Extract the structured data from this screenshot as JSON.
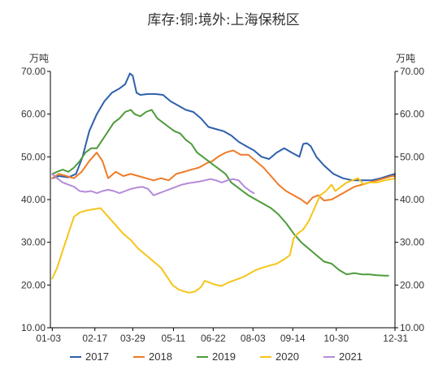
{
  "chart_data": {
    "type": "line",
    "title": "库存:铜:境外:上海保税区",
    "unit_left": "万吨",
    "unit_right": "万吨",
    "ylim": [
      10,
      70
    ],
    "yticks": [
      "10.00",
      "20.00",
      "30.00",
      "40.00",
      "50.00",
      "60.00",
      "70.00"
    ],
    "xlim": [
      1,
      365
    ],
    "xticks": [
      {
        "label": "01-03",
        "day": 3
      },
      {
        "label": "02-17",
        "day": 48
      },
      {
        "label": "03-29",
        "day": 88
      },
      {
        "label": "05-11",
        "day": 131
      },
      {
        "label": "06-22",
        "day": 173
      },
      {
        "label": "08-03",
        "day": 215
      },
      {
        "label": "09-14",
        "day": 257
      },
      {
        "label": "10-30",
        "day": 303
      },
      {
        "label": "12-31",
        "day": 365
      }
    ],
    "series": [
      {
        "name": "2017",
        "color": "#2e5fac",
        "points": [
          [
            3,
            45
          ],
          [
            10,
            45.5
          ],
          [
            20,
            45.2
          ],
          [
            28,
            46
          ],
          [
            35,
            50
          ],
          [
            42,
            56
          ],
          [
            50,
            60
          ],
          [
            58,
            63
          ],
          [
            66,
            65
          ],
          [
            74,
            66
          ],
          [
            80,
            67
          ],
          [
            85,
            69.5
          ],
          [
            88,
            69
          ],
          [
            92,
            65
          ],
          [
            96,
            64.5
          ],
          [
            104,
            64.7
          ],
          [
            112,
            64.7
          ],
          [
            120,
            64.5
          ],
          [
            128,
            63
          ],
          [
            136,
            62
          ],
          [
            144,
            61
          ],
          [
            152,
            60.5
          ],
          [
            160,
            59
          ],
          [
            168,
            57
          ],
          [
            176,
            56.5
          ],
          [
            184,
            56
          ],
          [
            192,
            55
          ],
          [
            200,
            53.5
          ],
          [
            208,
            52.5
          ],
          [
            216,
            51.5
          ],
          [
            224,
            50
          ],
          [
            232,
            49.5
          ],
          [
            240,
            51
          ],
          [
            248,
            52
          ],
          [
            256,
            51
          ],
          [
            264,
            50
          ],
          [
            268,
            53
          ],
          [
            272,
            53.2
          ],
          [
            276,
            52.5
          ],
          [
            282,
            50
          ],
          [
            290,
            48
          ],
          [
            300,
            46
          ],
          [
            310,
            45
          ],
          [
            320,
            44.5
          ],
          [
            330,
            44.5
          ],
          [
            340,
            44.5
          ],
          [
            350,
            45
          ],
          [
            360,
            45.7
          ],
          [
            365,
            46
          ]
        ]
      },
      {
        "name": "2018",
        "color": "#ee7b27",
        "points": [
          [
            3,
            45
          ],
          [
            10,
            46
          ],
          [
            18,
            45.5
          ],
          [
            26,
            45
          ],
          [
            34,
            46.5
          ],
          [
            42,
            49
          ],
          [
            50,
            51
          ],
          [
            56,
            49
          ],
          [
            62,
            45
          ],
          [
            70,
            46.5
          ],
          [
            78,
            45.5
          ],
          [
            86,
            46
          ],
          [
            94,
            45.5
          ],
          [
            102,
            45
          ],
          [
            110,
            44.5
          ],
          [
            118,
            45
          ],
          [
            126,
            44.5
          ],
          [
            134,
            46
          ],
          [
            142,
            46.5
          ],
          [
            150,
            47
          ],
          [
            158,
            47.5
          ],
          [
            166,
            48.5
          ],
          [
            172,
            49
          ],
          [
            178,
            50
          ],
          [
            186,
            51
          ],
          [
            194,
            51.5
          ],
          [
            202,
            50.5
          ],
          [
            210,
            50.5
          ],
          [
            218,
            49
          ],
          [
            226,
            47.5
          ],
          [
            234,
            45.5
          ],
          [
            242,
            43.5
          ],
          [
            250,
            42
          ],
          [
            258,
            41
          ],
          [
            266,
            40
          ],
          [
            272,
            39
          ],
          [
            278,
            40.5
          ],
          [
            284,
            41
          ],
          [
            290,
            39.8
          ],
          [
            298,
            40
          ],
          [
            306,
            41
          ],
          [
            314,
            42
          ],
          [
            322,
            43
          ],
          [
            330,
            43.5
          ],
          [
            338,
            44
          ],
          [
            346,
            44.5
          ],
          [
            354,
            45
          ],
          [
            362,
            45.5
          ],
          [
            365,
            45.5
          ]
        ]
      },
      {
        "name": "2019",
        "color": "#4e9b3b",
        "points": [
          [
            3,
            46
          ],
          [
            8,
            46.5
          ],
          [
            14,
            47
          ],
          [
            20,
            46.5
          ],
          [
            26,
            47.5
          ],
          [
            32,
            49
          ],
          [
            38,
            51
          ],
          [
            44,
            52
          ],
          [
            50,
            52
          ],
          [
            56,
            54
          ],
          [
            62,
            56
          ],
          [
            68,
            58
          ],
          [
            74,
            59
          ],
          [
            80,
            60.5
          ],
          [
            86,
            61
          ],
          [
            90,
            60
          ],
          [
            96,
            59.5
          ],
          [
            102,
            60.5
          ],
          [
            108,
            61
          ],
          [
            114,
            59
          ],
          [
            120,
            58
          ],
          [
            126,
            57
          ],
          [
            132,
            56
          ],
          [
            138,
            55.5
          ],
          [
            144,
            54
          ],
          [
            150,
            53
          ],
          [
            156,
            51
          ],
          [
            162,
            50
          ],
          [
            168,
            49
          ],
          [
            174,
            48
          ],
          [
            180,
            47
          ],
          [
            186,
            46
          ],
          [
            192,
            44
          ],
          [
            198,
            43
          ],
          [
            204,
            42
          ],
          [
            210,
            41
          ],
          [
            218,
            40
          ],
          [
            226,
            39
          ],
          [
            234,
            38
          ],
          [
            242,
            36.5
          ],
          [
            250,
            34.5
          ],
          [
            258,
            32
          ],
          [
            266,
            30
          ],
          [
            274,
            28.5
          ],
          [
            282,
            27
          ],
          [
            290,
            25.5
          ],
          [
            298,
            25
          ],
          [
            306,
            23.5
          ],
          [
            314,
            22.5
          ],
          [
            322,
            22.8
          ],
          [
            330,
            22.5
          ],
          [
            338,
            22.5
          ],
          [
            346,
            22.3
          ],
          [
            354,
            22.2
          ],
          [
            358,
            22.2
          ]
        ]
      },
      {
        "name": "2020",
        "color": "#f5c518",
        "points": [
          [
            3,
            21.5
          ],
          [
            8,
            24
          ],
          [
            14,
            28
          ],
          [
            20,
            32
          ],
          [
            26,
            36
          ],
          [
            32,
            37
          ],
          [
            40,
            37.5
          ],
          [
            48,
            37.8
          ],
          [
            54,
            38
          ],
          [
            58,
            37
          ],
          [
            64,
            35.5
          ],
          [
            70,
            34
          ],
          [
            78,
            32
          ],
          [
            86,
            30.5
          ],
          [
            94,
            28.5
          ],
          [
            102,
            27
          ],
          [
            110,
            25.5
          ],
          [
            118,
            24
          ],
          [
            124,
            22
          ],
          [
            130,
            20
          ],
          [
            136,
            19
          ],
          [
            142,
            18.5
          ],
          [
            148,
            18.2
          ],
          [
            154,
            18.5
          ],
          [
            160,
            19.5
          ],
          [
            164,
            21
          ],
          [
            170,
            20.5
          ],
          [
            176,
            20
          ],
          [
            182,
            19.8
          ],
          [
            188,
            20.5
          ],
          [
            194,
            21
          ],
          [
            200,
            21.5
          ],
          [
            206,
            22
          ],
          [
            212,
            22.8
          ],
          [
            218,
            23.5
          ],
          [
            224,
            24
          ],
          [
            232,
            24.5
          ],
          [
            240,
            25
          ],
          [
            248,
            26
          ],
          [
            254,
            27
          ],
          [
            258,
            31
          ],
          [
            262,
            32
          ],
          [
            268,
            33
          ],
          [
            274,
            35
          ],
          [
            280,
            38
          ],
          [
            286,
            41
          ],
          [
            292,
            42
          ],
          [
            298,
            43.5
          ],
          [
            302,
            42
          ],
          [
            308,
            43
          ],
          [
            314,
            44
          ],
          [
            320,
            44.5
          ],
          [
            326,
            45
          ],
          [
            332,
            43.5
          ],
          [
            338,
            44
          ],
          [
            346,
            44
          ],
          [
            354,
            44.5
          ],
          [
            362,
            44.8
          ],
          [
            365,
            45
          ]
        ]
      },
      {
        "name": "2021",
        "color": "#b48bd9",
        "points": [
          [
            3,
            46
          ],
          [
            8,
            45
          ],
          [
            14,
            44
          ],
          [
            20,
            43.5
          ],
          [
            26,
            43
          ],
          [
            32,
            42
          ],
          [
            38,
            41.8
          ],
          [
            44,
            42
          ],
          [
            50,
            41.5
          ],
          [
            56,
            42
          ],
          [
            62,
            42.3
          ],
          [
            68,
            42
          ],
          [
            74,
            41.5
          ],
          [
            80,
            42
          ],
          [
            86,
            42.5
          ],
          [
            92,
            42.8
          ],
          [
            98,
            43
          ],
          [
            104,
            42.5
          ],
          [
            110,
            41
          ],
          [
            116,
            41.5
          ],
          [
            122,
            42
          ],
          [
            128,
            42.5
          ],
          [
            134,
            43
          ],
          [
            140,
            43.5
          ],
          [
            146,
            43.8
          ],
          [
            152,
            44
          ],
          [
            158,
            44.2
          ],
          [
            164,
            44.5
          ],
          [
            170,
            44.8
          ],
          [
            176,
            44.5
          ],
          [
            182,
            44
          ],
          [
            188,
            44.5
          ],
          [
            194,
            44.8
          ],
          [
            200,
            44.5
          ],
          [
            206,
            43
          ],
          [
            212,
            42
          ],
          [
            216,
            41.5
          ]
        ]
      }
    ]
  }
}
